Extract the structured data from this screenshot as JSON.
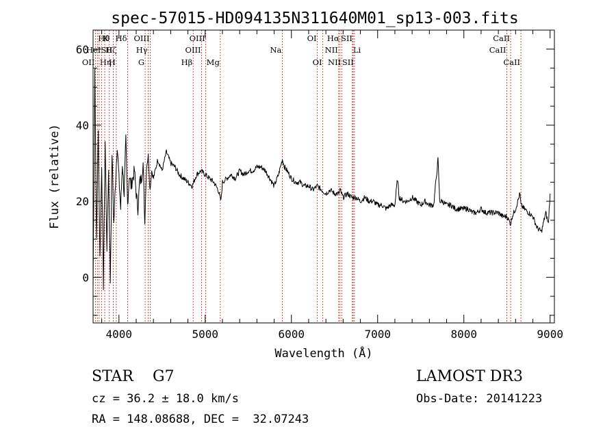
{
  "chart_data": {
    "type": "line",
    "title": "spec-57015-HD094135N311640M01_sp13-003.fits",
    "xlabel": "Wavelength (Å)",
    "ylabel": "Flux (relative)",
    "xlim": [
      3700,
      9050
    ],
    "ylim": [
      -12,
      65
    ],
    "xticks": [
      4000,
      5000,
      6000,
      7000,
      8000,
      9000
    ],
    "yticks": [
      0,
      20,
      40,
      60
    ],
    "series": [
      {
        "name": "flux",
        "x": [
          3700,
          3720,
          3740,
          3760,
          3780,
          3800,
          3820,
          3840,
          3860,
          3880,
          3900,
          3920,
          3940,
          3960,
          3980,
          4000,
          4020,
          4040,
          4060,
          4080,
          4100,
          4120,
          4140,
          4160,
          4180,
          4200,
          4220,
          4240,
          4260,
          4280,
          4300,
          4310,
          4320,
          4340,
          4360,
          4380,
          4400,
          4450,
          4500,
          4550,
          4600,
          4650,
          4700,
          4750,
          4800,
          4850,
          4900,
          4950,
          5000,
          5050,
          5100,
          5150,
          5183,
          5200,
          5250,
          5300,
          5350,
          5400,
          5450,
          5500,
          5550,
          5600,
          5650,
          5700,
          5750,
          5800,
          5850,
          5895,
          5920,
          5950,
          6000,
          6050,
          6100,
          6150,
          6200,
          6250,
          6300,
          6350,
          6400,
          6450,
          6500,
          6550,
          6563,
          6600,
          6650,
          6700,
          6750,
          6800,
          6850,
          6900,
          6950,
          7000,
          7050,
          7100,
          7150,
          7200,
          7230,
          7250,
          7300,
          7350,
          7400,
          7450,
          7500,
          7550,
          7600,
          7650,
          7700,
          7720,
          7750,
          7800,
          7850,
          7900,
          7950,
          8000,
          8050,
          8100,
          8150,
          8200,
          8250,
          8300,
          8350,
          8400,
          8450,
          8500,
          8542,
          8560,
          8600,
          8650,
          8662,
          8700,
          8750,
          8800,
          8850,
          8900,
          8950,
          8980,
          9000
        ],
        "y": [
          -3,
          55,
          10,
          38,
          5,
          30,
          -2,
          36,
          8,
          28,
          -1,
          33,
          14,
          25,
          35,
          26,
          18,
          30,
          22,
          36,
          19,
          27,
          24,
          26,
          28,
          22,
          18,
          25,
          26,
          30,
          14,
          22,
          29,
          32,
          23,
          28,
          26,
          31,
          28,
          33,
          30,
          29,
          27,
          26,
          25,
          24,
          27,
          28,
          27,
          26,
          25,
          23,
          20,
          25,
          26,
          27,
          26,
          28,
          27,
          28,
          28,
          29,
          29,
          28,
          26,
          24,
          27,
          31,
          29,
          28,
          26,
          25,
          25,
          24,
          24,
          23,
          24,
          23,
          22,
          23,
          22,
          22,
          23,
          21,
          22,
          21,
          21,
          20,
          21,
          20,
          20,
          19,
          19,
          18,
          19,
          19,
          26,
          21,
          20,
          20,
          21,
          20,
          19,
          20,
          19,
          19,
          31,
          20,
          20,
          19,
          19,
          18,
          18,
          18,
          18,
          17,
          17,
          18,
          17,
          17,
          17,
          17,
          16,
          16,
          14,
          16,
          18,
          22,
          19,
          18,
          17,
          16,
          13,
          12,
          17,
          14,
          22
        ]
      }
    ],
    "lines": [
      {
        "label": "OII",
        "x": 3727,
        "row": 3,
        "side": "left"
      },
      {
        "label": "Hθ",
        "x": 3750,
        "row": 1,
        "side": "right"
      },
      {
        "label": "Hη",
        "x": 3770,
        "row": 3,
        "side": "right"
      },
      {
        "label": "HeI",
        "x": 3798,
        "row": 2,
        "side": "left"
      },
      {
        "label": "Hζ",
        "x": 3835,
        "row": 2,
        "side": "right"
      },
      {
        "label": "K",
        "x": 3889,
        "row": 1,
        "side": "left"
      },
      {
        "label": "SII",
        "x": 3934,
        "row": 2,
        "side": "left"
      },
      {
        "label": "H",
        "x": 3969,
        "row": 3,
        "side": "left"
      },
      {
        "label": "Hδ",
        "x": 4101,
        "row": 1,
        "side": "left"
      },
      {
        "label": "G",
        "x": 4304,
        "row": 3,
        "side": "left"
      },
      {
        "label": "Hγ",
        "x": 4340,
        "row": 2,
        "side": "left"
      },
      {
        "label": "OIII",
        "x": 4363,
        "row": 1,
        "side": "left"
      },
      {
        "label": "Hβ",
        "x": 4861,
        "row": 3,
        "side": "left"
      },
      {
        "label": "OIII",
        "x": 4959,
        "row": 2,
        "side": "left"
      },
      {
        "label": "OIII",
        "x": 5007,
        "row": 1,
        "side": "left"
      },
      {
        "label": "Mg",
        "x": 5175,
        "row": 3,
        "side": "left"
      },
      {
        "label": "Na",
        "x": 5894,
        "row": 2,
        "side": "left"
      },
      {
        "label": "OI",
        "x": 6300,
        "row": 1,
        "side": "left"
      },
      {
        "label": "OI",
        "x": 6364,
        "row": 3,
        "side": "left"
      },
      {
        "label": "NII",
        "x": 6548,
        "row": 2,
        "side": "left"
      },
      {
        "label": "Hα",
        "x": 6563,
        "row": 1,
        "side": "left"
      },
      {
        "label": "NII",
        "x": 6583,
        "row": 3,
        "side": "left"
      },
      {
        "label": "Li",
        "x": 6707,
        "row": 2,
        "side": "right"
      },
      {
        "label": "SII",
        "x": 6716,
        "row": 1,
        "side": "left"
      },
      {
        "label": "SII",
        "x": 6731,
        "row": 3,
        "side": "left"
      },
      {
        "label": "CaII",
        "x": 8498,
        "row": 2,
        "side": "left"
      },
      {
        "label": "CaII",
        "x": 8542,
        "row": 1,
        "side": "left"
      },
      {
        "label": "CaII",
        "x": 8662,
        "row": 3,
        "side": "left"
      }
    ]
  },
  "info": {
    "class": "STAR    G7",
    "survey": "LAMOST DR3",
    "cz": "cz = 36.2 ± 18.0 km/s",
    "obs_date": "Obs-Date: 20141223",
    "coords": "RA = 148.08688, DEC =  32.07243"
  },
  "colors": {
    "axis": "#000000",
    "spectrum": "#000000",
    "line_marker": "#c0392b"
  }
}
